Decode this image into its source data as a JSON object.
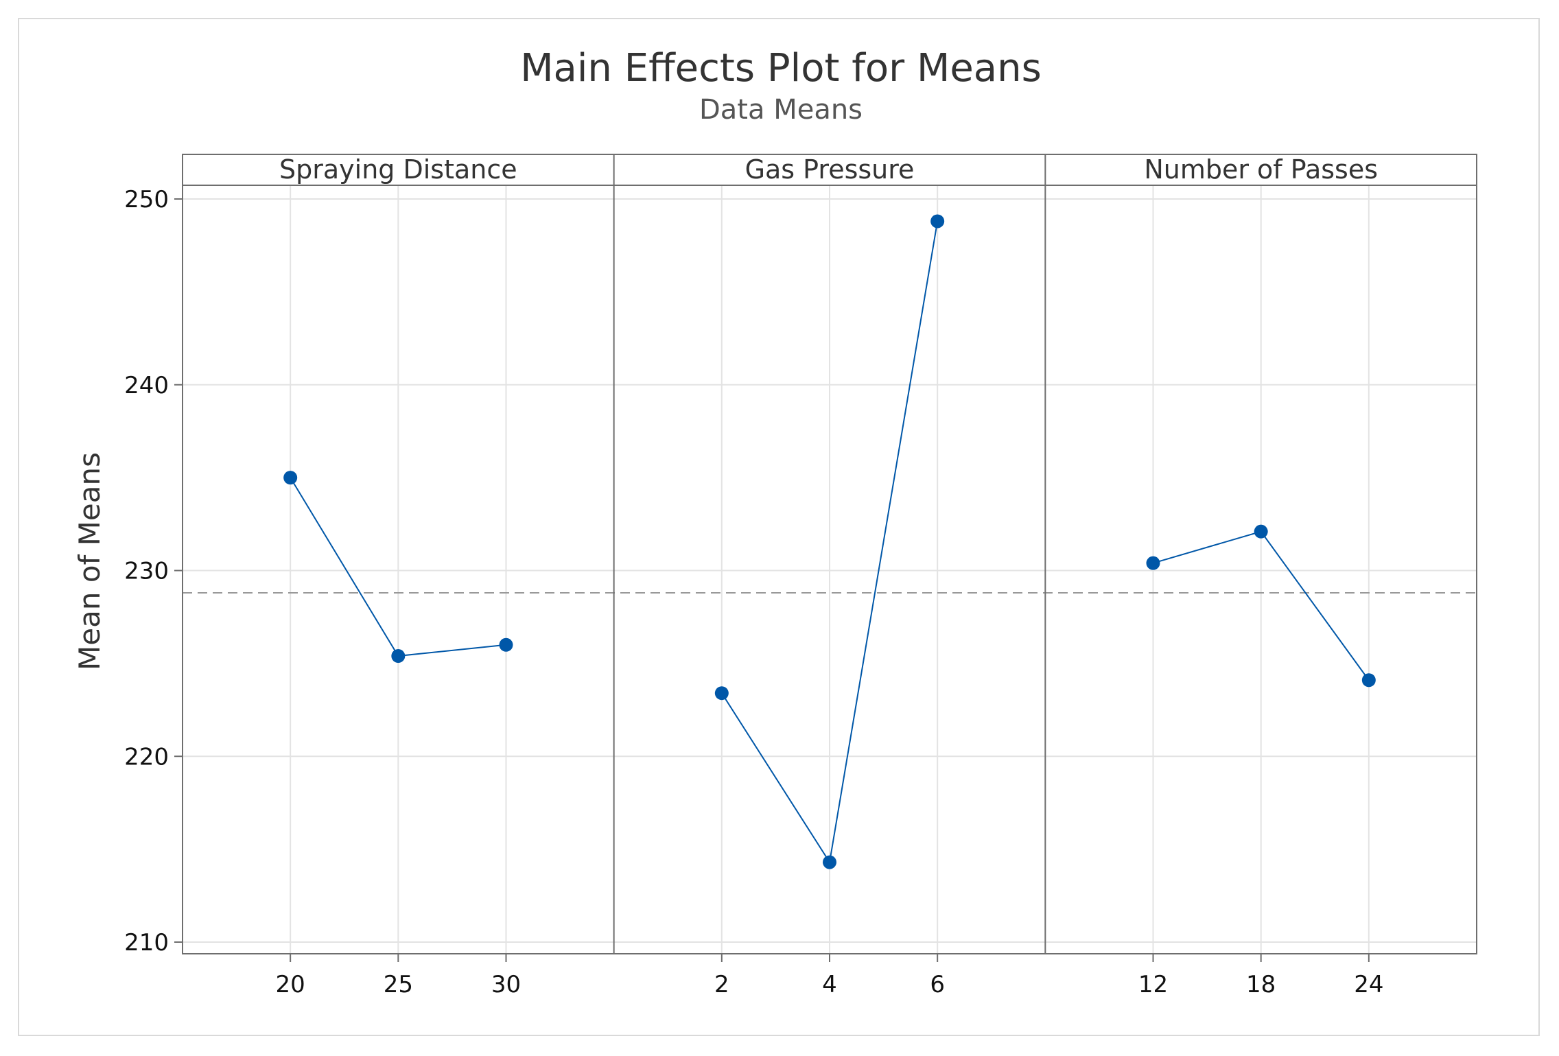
{
  "chart_data": {
    "type": "line",
    "title": "Main Effects Plot for Means",
    "subtitle": "Data Means",
    "ylabel": "Mean of Means",
    "ylim": [
      210,
      250
    ],
    "yticks": [
      210,
      220,
      230,
      240,
      250
    ],
    "reference_line": 228.8,
    "grid": true,
    "panels": [
      {
        "name": "Spraying Distance",
        "categories": [
          "20",
          "25",
          "30"
        ],
        "values": [
          235.0,
          225.4,
          226.0
        ]
      },
      {
        "name": "Gas Pressure",
        "categories": [
          "2",
          "4",
          "6"
        ],
        "values": [
          223.4,
          214.3,
          248.8
        ]
      },
      {
        "name": "Number of Passes",
        "categories": [
          "12",
          "18",
          "24"
        ],
        "values": [
          230.4,
          232.1,
          224.1
        ]
      }
    ],
    "colors": {
      "series": "#0057a8",
      "grid": "#e3e3e3",
      "frame": "#6e6e6e",
      "reference": "#999999"
    }
  }
}
